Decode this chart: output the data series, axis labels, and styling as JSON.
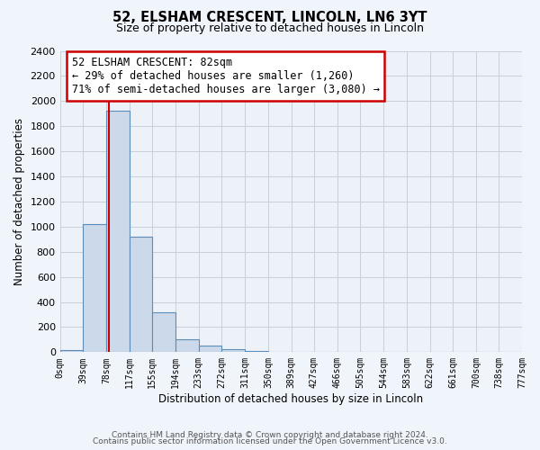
{
  "title_line1": "52, ELSHAM CRESCENT, LINCOLN, LN6 3YT",
  "title_line2": "Size of property relative to detached houses in Lincoln",
  "xlabel": "Distribution of detached houses by size in Lincoln",
  "ylabel": "Number of detached properties",
  "bin_edges": [
    0,
    39,
    78,
    117,
    155,
    194,
    233,
    272,
    311,
    350,
    389,
    427,
    466,
    505,
    544,
    583,
    622,
    661,
    700,
    738,
    777
  ],
  "bin_labels": [
    "0sqm",
    "39sqm",
    "78sqm",
    "117sqm",
    "155sqm",
    "194sqm",
    "233sqm",
    "272sqm",
    "311sqm",
    "350sqm",
    "389sqm",
    "427sqm",
    "466sqm",
    "505sqm",
    "544sqm",
    "583sqm",
    "622sqm",
    "661sqm",
    "700sqm",
    "738sqm",
    "777sqm"
  ],
  "counts": [
    20,
    1020,
    1920,
    920,
    320,
    105,
    50,
    25,
    10,
    0,
    0,
    0,
    0,
    0,
    0,
    0,
    0,
    0,
    0,
    0
  ],
  "bar_color": "#ccd9ea",
  "bar_edge_color": "#5b8db8",
  "property_size": 82,
  "vline_color": "#cc0000",
  "annotation_line1": "52 ELSHAM CRESCENT: 82sqm",
  "annotation_line2": "← 29% of detached houses are smaller (1,260)",
  "annotation_line3": "71% of semi-detached houses are larger (3,080) →",
  "annotation_box_edge": "#cc0000",
  "annotation_box_face": "#ffffff",
  "ylim": [
    0,
    2400
  ],
  "yticks": [
    0,
    200,
    400,
    600,
    800,
    1000,
    1200,
    1400,
    1600,
    1800,
    2000,
    2200,
    2400
  ],
  "bg_color": "#f0f4fb",
  "plot_bg_color": "#edf1f8",
  "grid_color": "#c8cfd8",
  "footer_line1": "Contains HM Land Registry data © Crown copyright and database right 2024.",
  "footer_line2": "Contains public sector information licensed under the Open Government Licence v3.0."
}
